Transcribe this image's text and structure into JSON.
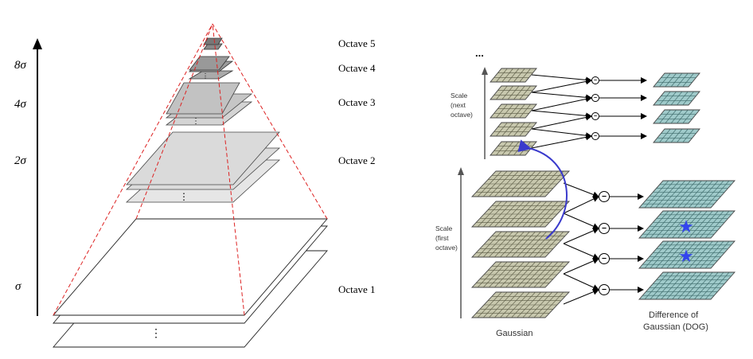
{
  "pyramid": {
    "scales": [
      "8σ",
      "4σ",
      "2σ",
      "σ"
    ],
    "octaves": [
      "Octave 5",
      "Octave 4",
      "Octave 3",
      "Octave 2",
      "Octave 1"
    ],
    "dots": "⋮"
  },
  "dog": {
    "top_ellipsis": "...",
    "scale_next_lines": [
      "Scale",
      "(next",
      "octave)"
    ],
    "scale_first_lines": [
      "Scale",
      "(first",
      "octave)"
    ],
    "gaussian_label": "Gaussian",
    "dog_label_lines": [
      "Difference of",
      "Gaussian (DOG)"
    ],
    "minus_symbol": "−",
    "star_symbol": "★",
    "colors": {
      "gaussian_fill": "#c8c8ae",
      "dog_fill": "#9fcaca",
      "arrow_blue": "#3a3acc",
      "star_blue": "#3344ee",
      "pyramid_dash": "#dd2222"
    }
  }
}
